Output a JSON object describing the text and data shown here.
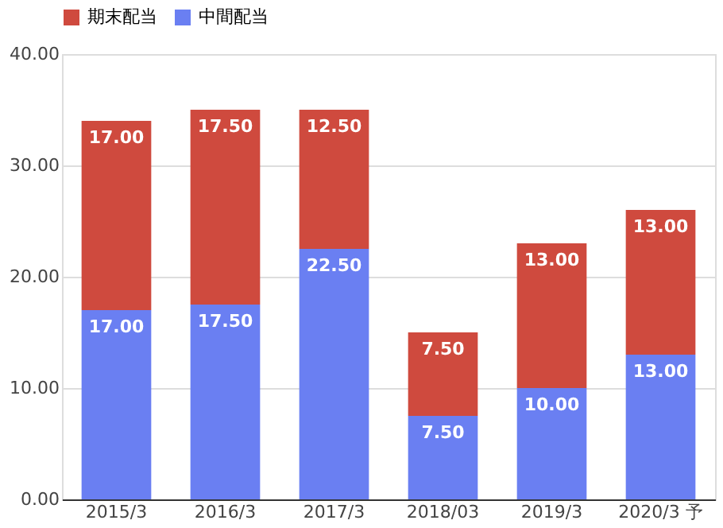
{
  "chart_data": {
    "type": "bar",
    "stacked": true,
    "categories": [
      "2015/3",
      "2016/3",
      "2017/3",
      "2018/03",
      "2019/3",
      "2020/3 予"
    ],
    "series": [
      {
        "name": "中間配当",
        "color": "#6a7ff2",
        "values": [
          17,
          17.5,
          22.5,
          7.5,
          10,
          13
        ],
        "value_labels": [
          "17.00",
          "17.50",
          "22.50",
          "7.50",
          "10.00",
          "13.00"
        ]
      },
      {
        "name": "期末配当",
        "color": "#cf4a3e",
        "values": [
          17,
          17.5,
          12.5,
          7.5,
          13,
          13
        ],
        "value_labels": [
          "17.00",
          "17.50",
          "12.50",
          "7.50",
          "13.00",
          "13.00"
        ]
      }
    ],
    "ylim": [
      0,
      40
    ],
    "yticks": [
      {
        "value": 0,
        "label": "0.00"
      },
      {
        "value": 10,
        "label": "10.00"
      },
      {
        "value": 20,
        "label": "20.00"
      },
      {
        "value": 30,
        "label": "30.00"
      },
      {
        "value": 40,
        "label": "40.00"
      }
    ],
    "grid": "y",
    "legend": "top"
  }
}
